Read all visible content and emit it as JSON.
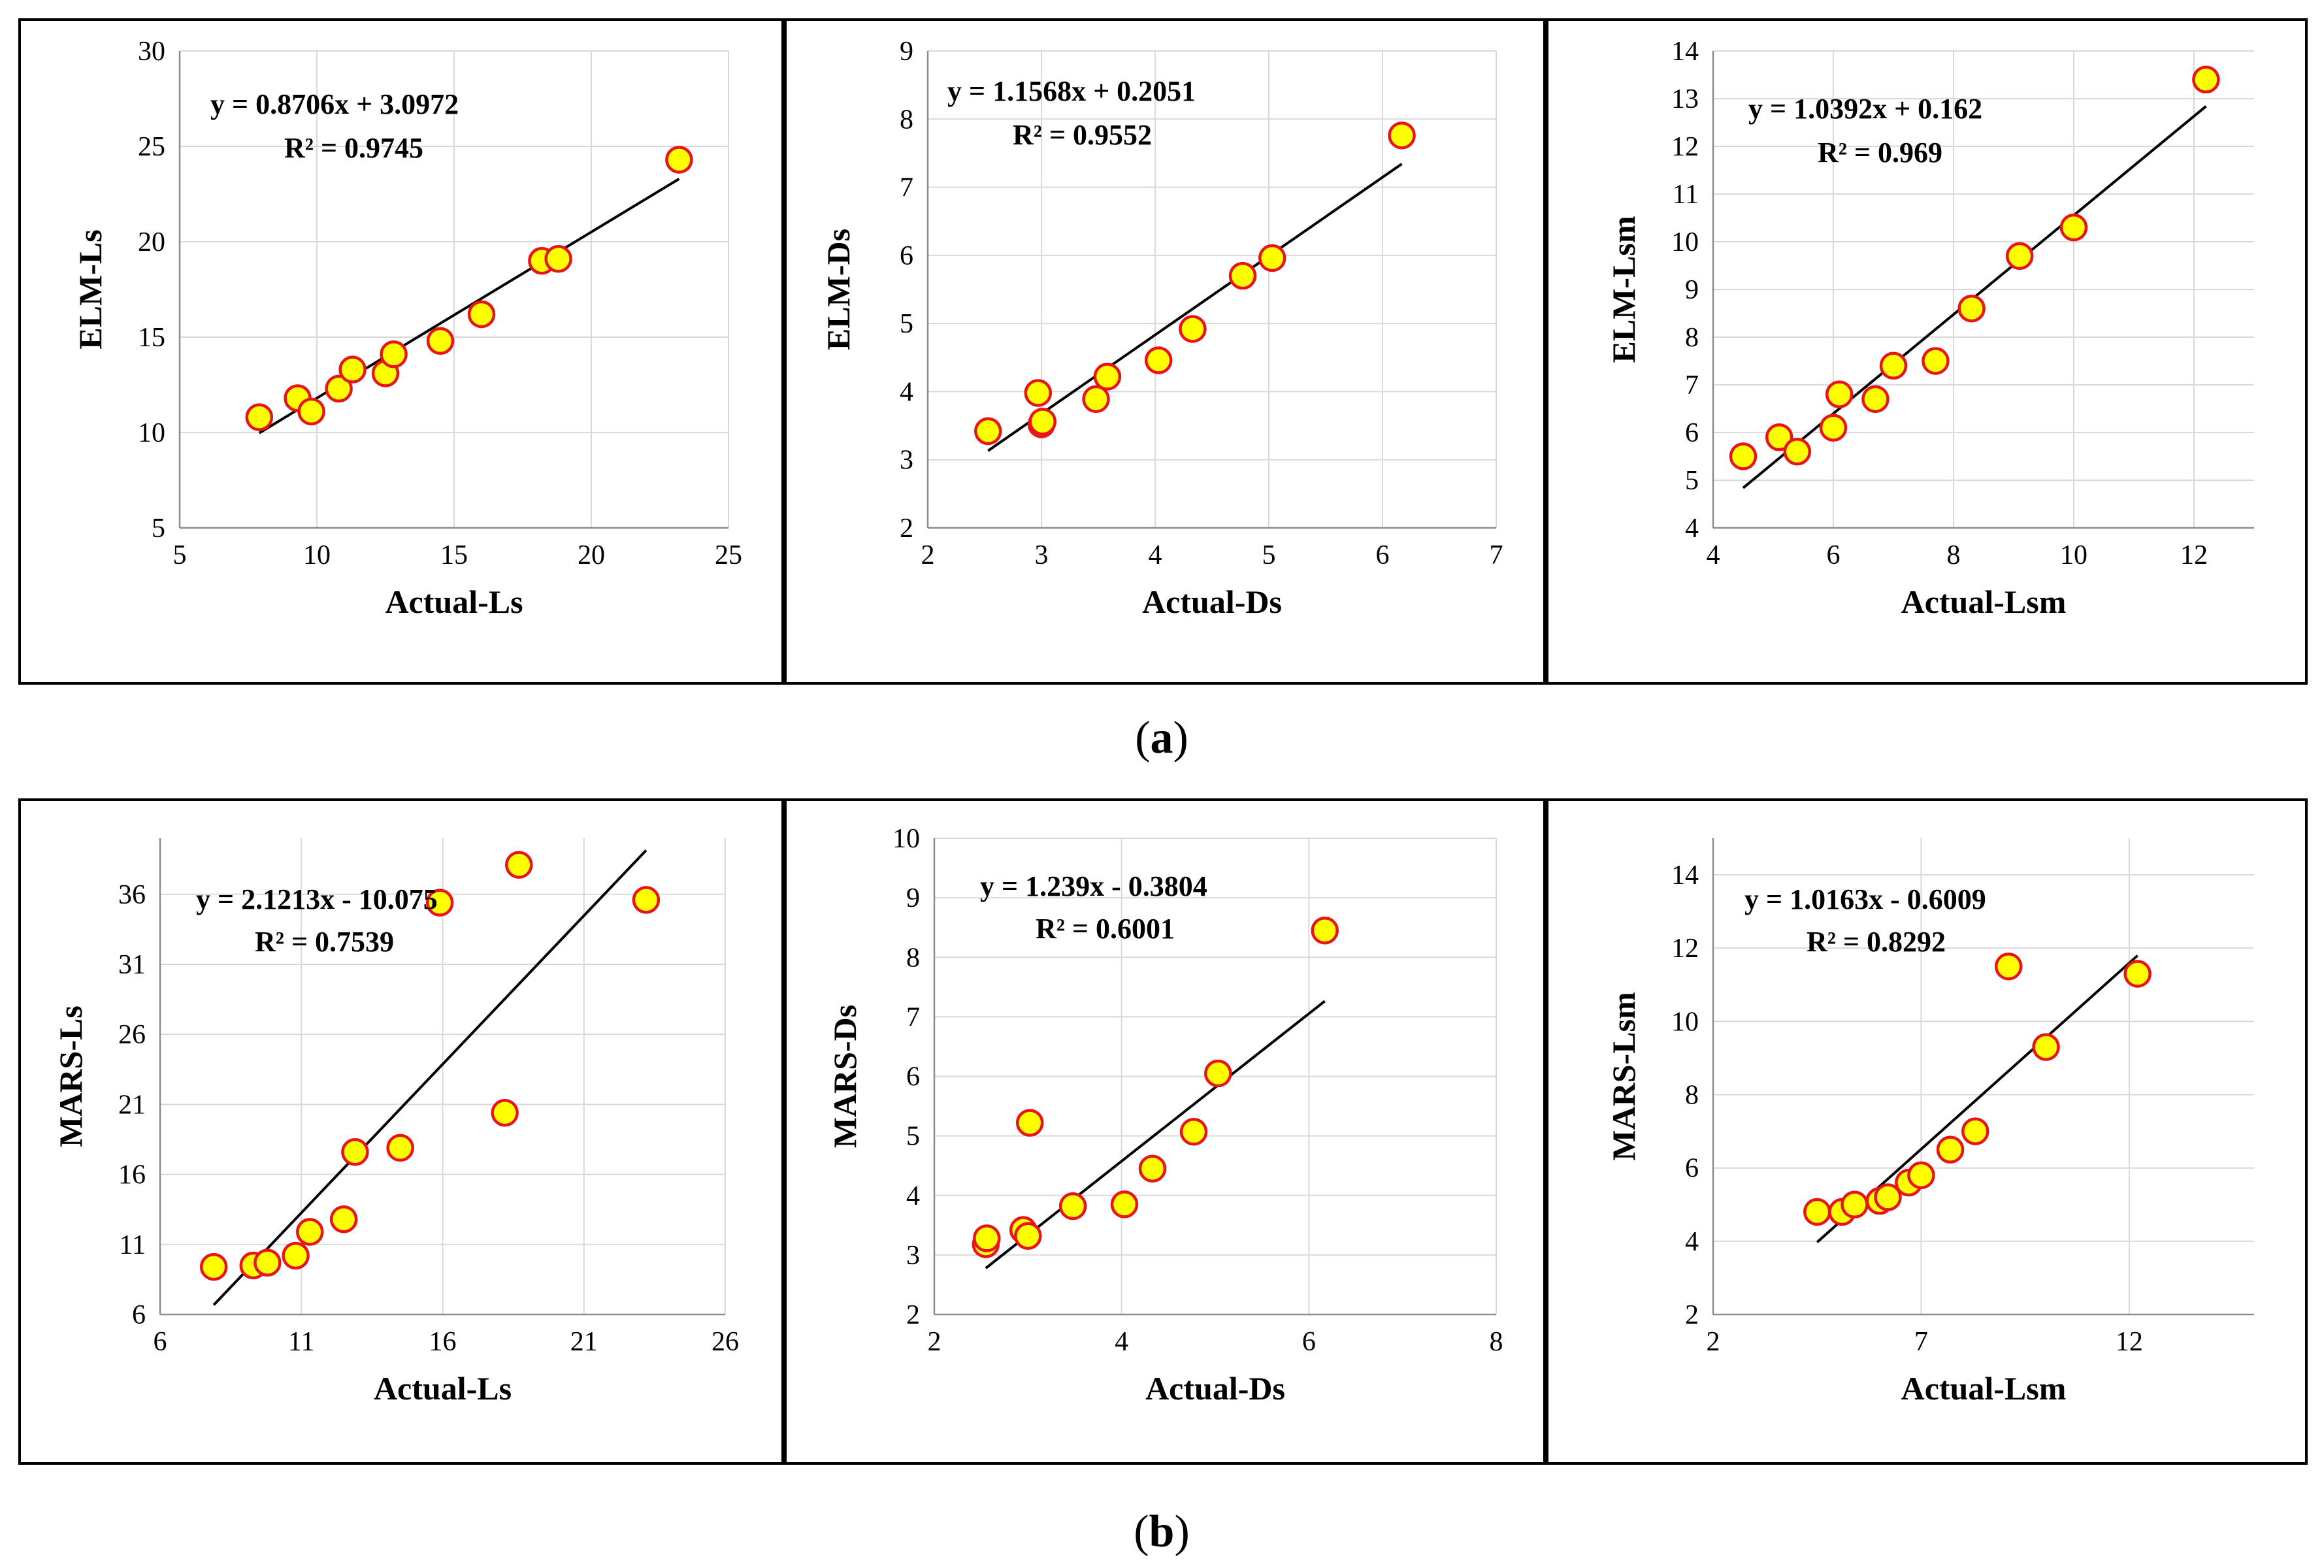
{
  "captions": {
    "a": "a",
    "b": "b"
  },
  "style": {
    "marker_fill": "#FFFF00",
    "marker_stroke": "#E8141A",
    "line_color": "#000000",
    "grid_color": "#D9D9D9",
    "text_color": "#000000"
  },
  "chart_data": [
    {
      "id": "a1",
      "type": "scatter",
      "group": "a",
      "xlabel": "Actual-Ls",
      "ylabel": "ELM-Ls",
      "xlim": [
        5,
        25
      ],
      "xticks": [
        5,
        10,
        15,
        20,
        25
      ],
      "ylim": [
        5,
        30
      ],
      "yticks": [
        5,
        10,
        15,
        20,
        25,
        30
      ],
      "equation": "y = 0.8706x + 3.0972",
      "r2": "R² = 0.9745",
      "x": [
        7.9,
        9.3,
        9.8,
        10.8,
        11.3,
        12.5,
        12.8,
        14.5,
        16.0,
        18.2,
        18.8,
        23.2
      ],
      "y": [
        10.8,
        11.8,
        11.1,
        12.3,
        13.3,
        13.1,
        14.1,
        14.8,
        16.2,
        19.0,
        19.1,
        24.3
      ],
      "trend": {
        "slope": 0.8706,
        "intercept": 3.0972,
        "x_range": [
          7.9,
          23.2
        ]
      }
    },
    {
      "id": "a2",
      "type": "scatter",
      "group": "a",
      "xlabel": "Actual-Ds",
      "ylabel": "ELM-Ds",
      "xlim": [
        2,
        7
      ],
      "xticks": [
        2,
        3,
        4,
        5,
        6,
        7
      ],
      "ylim": [
        2,
        9
      ],
      "yticks": [
        2,
        3,
        4,
        5,
        6,
        7,
        8,
        9
      ],
      "equation": "y = 1.1568x + 0.2051",
      "r2": "R² = 0.9552",
      "x": [
        2.53,
        2.97,
        3.0,
        3.01,
        3.48,
        3.58,
        4.03,
        4.33,
        4.77,
        5.03,
        6.17
      ],
      "y": [
        3.42,
        3.98,
        3.52,
        3.56,
        3.89,
        4.22,
        4.46,
        4.92,
        5.7,
        5.96,
        7.76
      ],
      "trend": {
        "slope": 1.1568,
        "intercept": 0.2051,
        "x_range": [
          2.53,
          6.17
        ]
      }
    },
    {
      "id": "a3",
      "type": "scatter",
      "group": "a",
      "xlabel": "Actual-Lsm",
      "ylabel": "ELM-Lsm",
      "xlim": [
        4,
        13
      ],
      "xticks": [
        4,
        6,
        8,
        10,
        12
      ],
      "ylim": [
        4,
        14
      ],
      "yticks": [
        4,
        5,
        6,
        7,
        8,
        9,
        10,
        11,
        12,
        13,
        14
      ],
      "equation": "y = 1.0392x + 0.162",
      "r2": "R² = 0.969",
      "x": [
        4.5,
        5.1,
        5.4,
        6.0,
        6.1,
        6.7,
        7.0,
        7.7,
        8.3,
        9.1,
        10.0,
        12.2
      ],
      "y": [
        5.5,
        5.9,
        5.6,
        6.1,
        6.8,
        6.7,
        7.4,
        7.5,
        8.6,
        9.7,
        10.3,
        13.4
      ],
      "trend": {
        "slope": 1.0392,
        "intercept": 0.162,
        "x_range": [
          4.5,
          12.2
        ]
      }
    },
    {
      "id": "b1",
      "type": "scatter",
      "group": "b",
      "xlabel": "Actual-Ls",
      "ylabel": "MARS-Ls",
      "xlim": [
        6,
        26
      ],
      "xticks": [
        6,
        11,
        16,
        21,
        26
      ],
      "ylim": [
        6,
        40
      ],
      "yticks": [
        6,
        11,
        16,
        21,
        26,
        31,
        36
      ],
      "equation": "y = 2.1213x - 10.075",
      "r2": "R² = 0.7539",
      "x": [
        7.9,
        9.3,
        9.8,
        10.8,
        11.3,
        12.5,
        12.9,
        14.5,
        15.9,
        18.2,
        18.7,
        23.2
      ],
      "y": [
        9.4,
        9.5,
        9.7,
        10.2,
        11.9,
        12.8,
        17.6,
        17.9,
        35.4,
        20.4,
        38.1,
        35.6
      ],
      "trend": {
        "slope": 2.1213,
        "intercept": -10.075,
        "x_range": [
          7.9,
          23.2
        ]
      }
    },
    {
      "id": "b2",
      "type": "scatter",
      "group": "b",
      "xlabel": "Actual-Ds",
      "ylabel": "MARS-Ds",
      "xlim": [
        2,
        8
      ],
      "xticks": [
        2,
        4,
        6,
        8
      ],
      "ylim": [
        2,
        10
      ],
      "yticks": [
        2,
        3,
        4,
        5,
        6,
        7,
        8,
        9,
        10
      ],
      "equation": "y = 1.239x - 0.3804",
      "r2": "R² = 0.6001",
      "x": [
        2.55,
        2.56,
        2.95,
        3.0,
        3.02,
        3.48,
        4.03,
        4.33,
        4.77,
        5.03,
        6.17
      ],
      "y": [
        3.18,
        3.28,
        3.42,
        3.32,
        5.22,
        3.82,
        3.85,
        4.45,
        5.07,
        6.05,
        8.45
      ],
      "trend": {
        "slope": 1.239,
        "intercept": -0.3804,
        "x_range": [
          2.55,
          6.17
        ]
      }
    },
    {
      "id": "b3",
      "type": "scatter",
      "group": "b",
      "xlabel": "Actual-Lsm",
      "ylabel": "MARS-Lsm",
      "xlim": [
        2,
        15
      ],
      "xticks": [
        2,
        7,
        12
      ],
      "ylim": [
        2,
        15
      ],
      "yticks": [
        2,
        4,
        6,
        8,
        10,
        12,
        14
      ],
      "equation": "y = 1.0163x - 0.6009",
      "r2": "R² = 0.8292",
      "x": [
        4.5,
        5.1,
        5.4,
        6.0,
        6.2,
        6.7,
        7.0,
        7.7,
        8.3,
        9.1,
        10.0,
        12.2
      ],
      "y": [
        4.8,
        4.8,
        5.0,
        5.1,
        5.2,
        5.6,
        5.8,
        6.5,
        7.0,
        11.5,
        9.3,
        11.3
      ],
      "trend": {
        "slope": 1.0163,
        "intercept": -0.6009,
        "x_range": [
          4.5,
          12.2
        ]
      }
    }
  ]
}
